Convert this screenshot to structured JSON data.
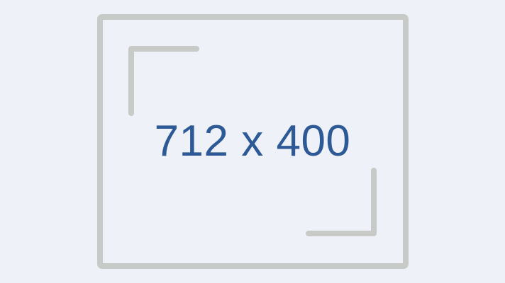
{
  "placeholder": {
    "dimensions_label": "712 x 400",
    "colors": {
      "background": "#eef2f8",
      "frame": "#c8cac8",
      "text": "#2d5a96"
    }
  }
}
